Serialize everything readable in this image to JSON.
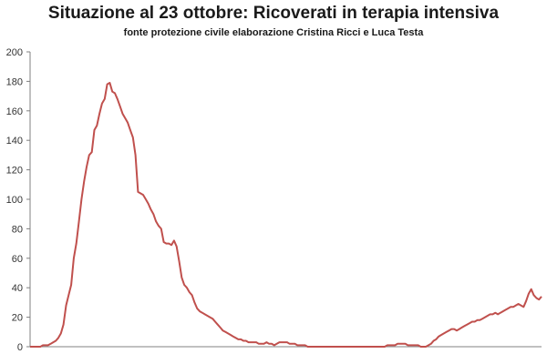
{
  "header": {
    "title": "Situazione al 23 ottobre: Ricoverati in terapia intensiva",
    "subtitle": "fonte protezione civile elaborazione Cristina Ricci e Luca Testa"
  },
  "chart_data": {
    "type": "line",
    "title": "Situazione al 23 ottobre: Ricoverati in terapia intensiva",
    "subtitle": "fonte protezione civile elaborazione Cristina Ricci e Luca Testa",
    "xlabel": "",
    "ylabel": "",
    "ylim": [
      0,
      200
    ],
    "yticks": [
      0,
      20,
      40,
      60,
      80,
      100,
      120,
      140,
      160,
      180,
      200
    ],
    "grid": false,
    "legend": "none",
    "line_color": "#C0504D",
    "series": [
      {
        "values": [
          0,
          0,
          0,
          0,
          0,
          1,
          1,
          1,
          2,
          3,
          4,
          6,
          9,
          15,
          28,
          35,
          42,
          60,
          70,
          85,
          100,
          112,
          122,
          130,
          132,
          147,
          150,
          158,
          165,
          168,
          178,
          179,
          173,
          172,
          168,
          163,
          158,
          155,
          152,
          147,
          142,
          130,
          105,
          104,
          103,
          100,
          97,
          93,
          90,
          85,
          82,
          80,
          71,
          70,
          70,
          69,
          72,
          68,
          58,
          47,
          42,
          40,
          37,
          35,
          30,
          26,
          24,
          23,
          22,
          21,
          20,
          19,
          17,
          15,
          13,
          11,
          10,
          9,
          8,
          7,
          6,
          5,
          5,
          4,
          4,
          3,
          3,
          3,
          3,
          2,
          2,
          2,
          3,
          2,
          2,
          1,
          2,
          3,
          3,
          3,
          3,
          2,
          2,
          2,
          1,
          1,
          1,
          1,
          0,
          0,
          0,
          0,
          0,
          0,
          0,
          0,
          0,
          0,
          0,
          0,
          0,
          0,
          0,
          0,
          0,
          0,
          0,
          0,
          0,
          0,
          0,
          0,
          0,
          0,
          0,
          0,
          0,
          0,
          0,
          1,
          1,
          1,
          1,
          2,
          2,
          2,
          2,
          1,
          1,
          1,
          1,
          1,
          0,
          0,
          0,
          1,
          2,
          4,
          5,
          7,
          8,
          9,
          10,
          11,
          12,
          12,
          11,
          12,
          13,
          14,
          15,
          16,
          17,
          17,
          18,
          18,
          19,
          20,
          21,
          22,
          22,
          23,
          22,
          23,
          24,
          25,
          26,
          27,
          27,
          28,
          29,
          28,
          27,
          31,
          36,
          39,
          35,
          33,
          32,
          34
        ]
      }
    ]
  }
}
